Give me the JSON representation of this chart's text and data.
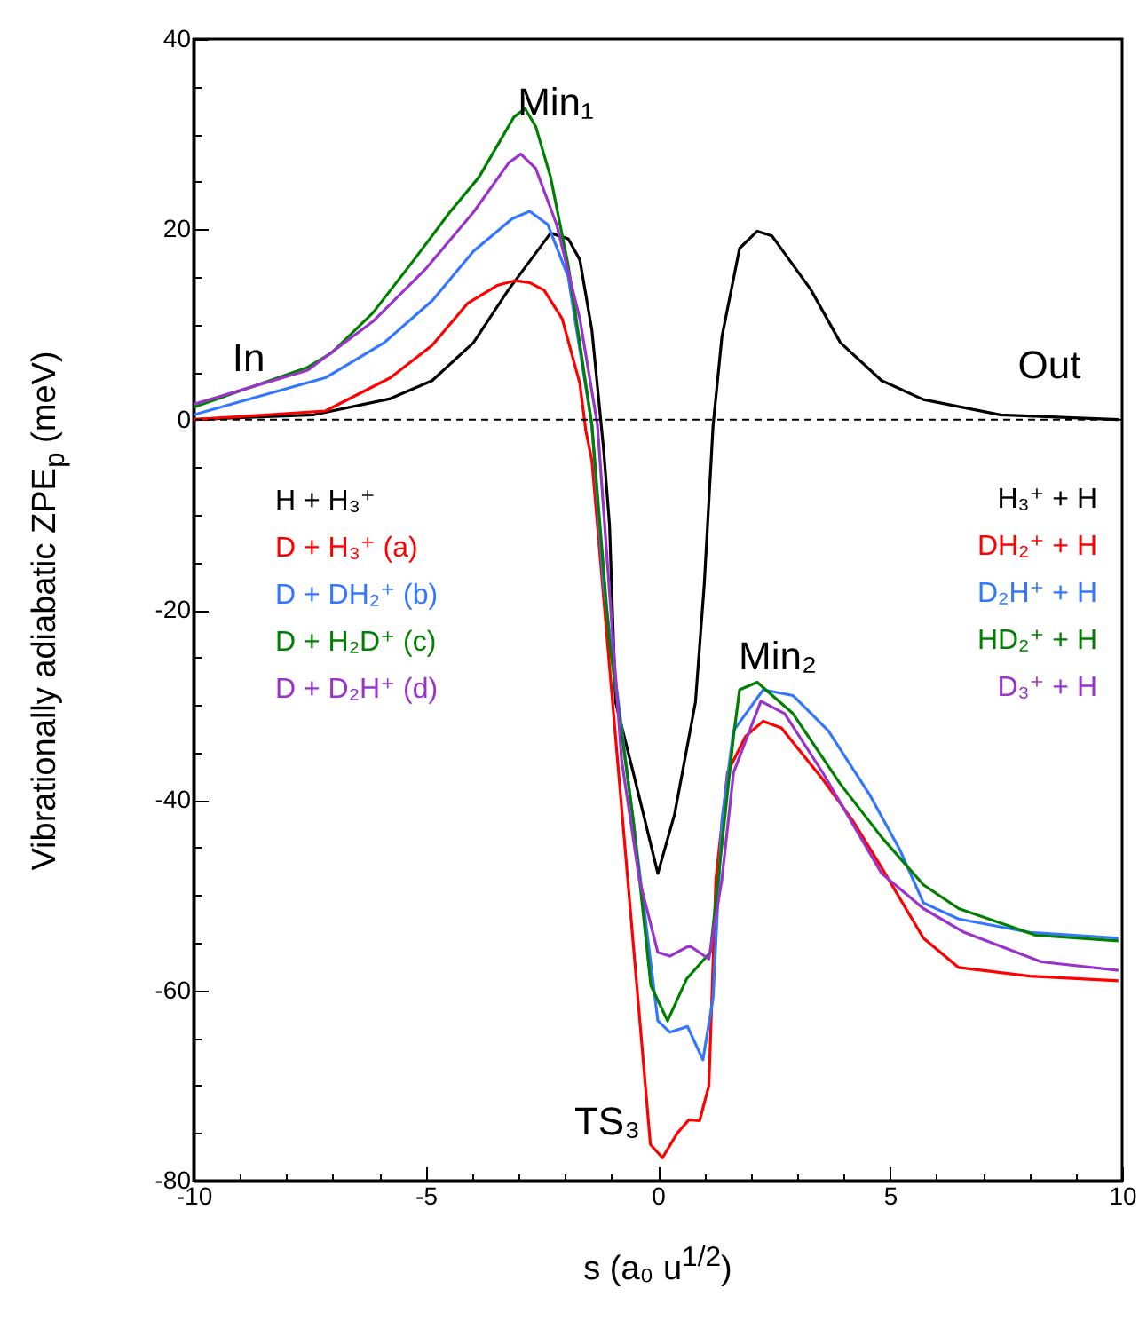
{
  "chart_data": {
    "type": "line",
    "xlabel": "s (a₀ u$^{1/2}$)",
    "ylabel": "Vibrationally adiabatic ZPE$_{p}$ (meV)",
    "xlim": [
      -10,
      10
    ],
    "ylim": [
      -80,
      40
    ],
    "xticks": [
      -10,
      {
        "value": -9,
        "label": null
      },
      {
        "value": -8,
        "label": null
      },
      {
        "value": -7,
        "label": null
      },
      {
        "value": -6,
        "label": null
      },
      -5,
      {
        "value": -4,
        "label": null
      },
      {
        "value": -3,
        "label": null
      },
      {
        "value": -2,
        "label": null
      },
      {
        "value": -1,
        "label": null
      },
      0,
      {
        "value": 1,
        "label": null
      },
      {
        "value": 2,
        "label": null
      },
      {
        "value": 3,
        "label": null
      },
      {
        "value": 4,
        "label": null
      },
      5,
      {
        "value": 6,
        "label": null
      },
      {
        "value": 7,
        "label": null
      },
      {
        "value": 8,
        "label": null
      },
      {
        "value": 9,
        "label": null
      },
      10
    ],
    "yticks": [
      -80,
      {
        "value": -75,
        "label": null
      },
      {
        "value": -70,
        "label": null
      },
      {
        "value": -65,
        "label": null
      },
      -60,
      {
        "value": -55,
        "label": null
      },
      {
        "value": -50,
        "label": null
      },
      {
        "value": -45,
        "label": null
      },
      -40,
      {
        "value": -35,
        "label": null
      },
      {
        "value": -30,
        "label": null
      },
      {
        "value": -25,
        "label": null
      },
      -20,
      {
        "value": -15,
        "label": null
      },
      {
        "value": -10,
        "label": null
      },
      {
        "value": -5,
        "label": null
      },
      0,
      {
        "value": 5,
        "label": null
      },
      {
        "value": 10,
        "label": null
      },
      {
        "value": 15,
        "label": null
      },
      20,
      {
        "value": 25,
        "label": null
      },
      {
        "value": 30,
        "label": null
      },
      {
        "value": 35,
        "label": null
      },
      40
    ],
    "grid": false,
    "legend": "left",
    "marker": "none",
    "line_style": "solid",
    "ref_lines": [
      {
        "axis": "y",
        "value": 0,
        "line_style": "dashed",
        "color": "#000000"
      }
    ],
    "annotations": [
      "In",
      "Min₁",
      "Out",
      "Min₂",
      "TS₃",
      "H₃⁺ + H",
      "DH₂⁺ + H",
      "D₂H⁺ + H",
      "HD₂⁺ + H",
      "D₃⁺ + H"
    ],
    "series": [
      {
        "name": "H + H₃⁺",
        "color": "#000000",
        "x": [
          -10,
          -7.41,
          -5.76,
          -4.86,
          -3.97,
          -3.21,
          -2.31,
          -1.93,
          -1.68,
          -1.42,
          -1.17,
          -1.04,
          -0.91,
          -0.53,
          0,
          0.36,
          0.81,
          1.0,
          1.19,
          1.38,
          1.76,
          2.14,
          2.46,
          3.29,
          3.93,
          4.82,
          5.72,
          7.38,
          9.92
        ],
        "values": [
          0,
          0.5,
          2.2,
          4.1,
          8.1,
          13.7,
          19.6,
          19,
          16.8,
          9.4,
          -3,
          -11.1,
          -29.7,
          -37.1,
          -47.7,
          -41.5,
          -29.7,
          -17.3,
          -0.6,
          8.7,
          18,
          19.8,
          19.3,
          13.7,
          8.1,
          4.1,
          2.1,
          0.5,
          0
        ]
      },
      {
        "name": "D + H₃⁺   (a)",
        "color": "#ff0000",
        "x": [
          -10,
          -7.16,
          -5.76,
          -4.86,
          -4.1,
          -3.46,
          -3.08,
          -2.76,
          -2.45,
          -2.06,
          -1.68,
          -1.55,
          -1.42,
          -0.16,
          0.1,
          0.42,
          0.67,
          0.9,
          1.1,
          1.25,
          1.5,
          1.89,
          2.27,
          2.66,
          3.55,
          4.19,
          4.82,
          5.72,
          6.48,
          8.01,
          9.92
        ],
        "values": [
          0,
          0.9,
          4.4,
          7.8,
          12.2,
          14.1,
          14.6,
          14.4,
          13.6,
          10.6,
          3.8,
          -1.2,
          -4.3,
          -76.2,
          -77.6,
          -75,
          -73.6,
          -73.7,
          -70,
          -48.3,
          -37.1,
          -33.3,
          -31.7,
          -32.4,
          -37.8,
          -42.1,
          -47.1,
          -54.5,
          -57.6,
          -58.5,
          -59
        ]
      },
      {
        "name": "D + DH₂⁺ (b)",
        "color": "#3377ff",
        "x": [
          -10,
          -7.16,
          -5.89,
          -4.86,
          -3.97,
          -3.14,
          -2.76,
          -2.37,
          -1.93,
          -1.42,
          -1.17,
          -0.53,
          0,
          0.26,
          0.64,
          0.97,
          1.19,
          1.38,
          1.63,
          2.27,
          2.91,
          3.67,
          4.57,
          5.21,
          5.72,
          6.48,
          8.01,
          9.92
        ],
        "values": [
          0.5,
          4.4,
          8.1,
          12.5,
          17.7,
          21.1,
          21.9,
          20.5,
          15,
          -0.6,
          -17.3,
          -42.1,
          -63.2,
          -64.4,
          -63.8,
          -67.3,
          -60.8,
          -42.1,
          -32.7,
          -28.4,
          -29,
          -32.7,
          -39.5,
          -45.2,
          -50.8,
          -52.5,
          -53.9,
          -54.5
        ]
      },
      {
        "name": "D + H₂D⁺ (c)",
        "color": "#008000",
        "x": [
          -10,
          -7.54,
          -7.03,
          -6.14,
          -5.25,
          -4.48,
          -3.85,
          -3.1,
          -2.86,
          -2.63,
          -2.31,
          -1.93,
          -1.42,
          -1.04,
          -0.53,
          -0.15,
          0.21,
          0.62,
          1.13,
          1.63,
          1.76,
          2.14,
          2.91,
          3.93,
          4.82,
          5.72,
          6.48,
          8.14,
          9.92
        ],
        "values": [
          1.3,
          5.5,
          7,
          11.2,
          16.8,
          21.8,
          25.5,
          31.8,
          32.7,
          30.8,
          25.5,
          16.2,
          -0.6,
          -23.5,
          -42.1,
          -59.5,
          -63.2,
          -58.8,
          -56,
          -33.3,
          -28.4,
          -27.6,
          -30.9,
          -38.3,
          -43.9,
          -48.9,
          -51.4,
          -54.2,
          -54.8
        ]
      },
      {
        "name": "D + D₂H⁺ (d)",
        "color": "#9933cc",
        "x": [
          -10,
          -7.54,
          -6.14,
          -4.99,
          -3.97,
          -3.21,
          -2.95,
          -2.63,
          -2.18,
          -1.68,
          -1.3,
          -0.78,
          -0.4,
          0,
          0.26,
          0.68,
          1.1,
          1.38,
          1.63,
          2.22,
          2.73,
          3.55,
          4.82,
          5.72,
          6.6,
          8.26,
          9.92
        ],
        "values": [
          1.6,
          5.2,
          10.3,
          15.9,
          21.8,
          27,
          27.9,
          26.4,
          20.5,
          10.6,
          -0.6,
          -35.8,
          -48.3,
          -56,
          -56.4,
          -55.3,
          -56.7,
          -48.3,
          -37.1,
          -29.6,
          -30.9,
          -37.1,
          -47.7,
          -51.4,
          -53.9,
          -57,
          -57.9
        ]
      }
    ]
  }
}
